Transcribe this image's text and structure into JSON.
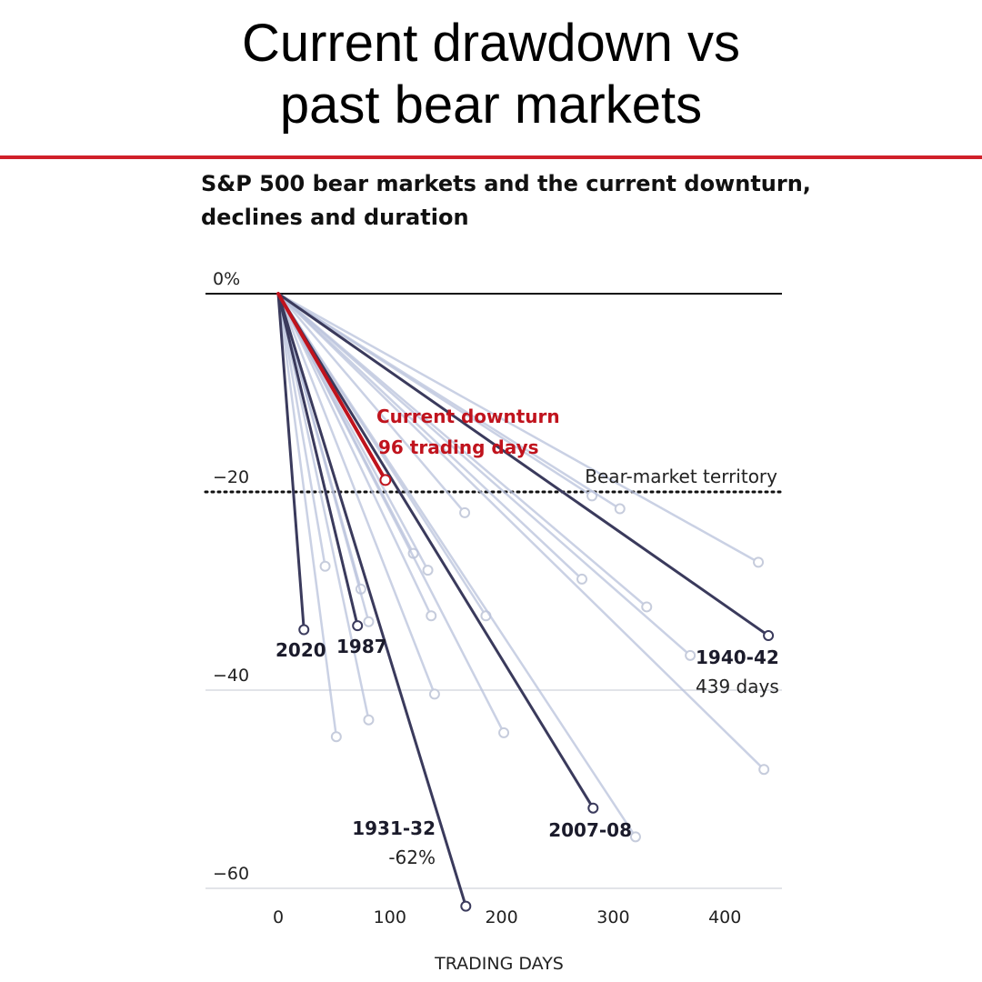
{
  "header": {
    "title_line1": "Current drawdown vs",
    "title_line2": "past bear markets"
  },
  "colors": {
    "rule": "#d0202a",
    "current": "#c0131d",
    "highlight": "#3a3a5c",
    "faded": "#b9c2dc"
  },
  "chart_data": {
    "type": "line",
    "title": "S&P 500 bear markets and the current downturn, declines and duration",
    "xlabel": "TRADING DAYS",
    "ylabel": "",
    "xlim": [
      -65,
      450
    ],
    "ylim": [
      -62,
      0
    ],
    "x_ticks": [
      "0",
      "100",
      "200",
      "300",
      "400"
    ],
    "y_ticks": [
      "0%",
      "−20",
      "−40",
      "−60"
    ],
    "threshold": {
      "y": -20,
      "label": "Bear-market territory"
    },
    "series": [
      {
        "name": "Current downturn",
        "style": "current",
        "start": [
          0,
          0
        ],
        "end": [
          96,
          -18.8
        ]
      },
      {
        "name": "2020",
        "style": "highlight",
        "start": [
          0,
          0
        ],
        "end": [
          23,
          -33.9
        ]
      },
      {
        "name": "1987",
        "style": "highlight",
        "start": [
          0,
          0
        ],
        "end": [
          71,
          -33.5
        ]
      },
      {
        "name": "1931-32",
        "style": "highlight",
        "start": [
          0,
          0
        ],
        "end": [
          168,
          -61.8
        ]
      },
      {
        "name": "2007-08",
        "style": "highlight",
        "start": [
          0,
          0
        ],
        "end": [
          282,
          -51.9
        ]
      },
      {
        "name": "1940-42",
        "style": "highlight",
        "start": [
          0,
          0
        ],
        "end": [
          439,
          -34.5
        ]
      },
      {
        "style": "faded",
        "start": [
          0,
          0
        ],
        "end": [
          42,
          -27.5
        ]
      },
      {
        "style": "faded",
        "start": [
          0,
          0
        ],
        "end": [
          52,
          -44.7
        ]
      },
      {
        "style": "faded",
        "start": [
          0,
          0
        ],
        "end": [
          74,
          -29.8
        ]
      },
      {
        "style": "faded",
        "start": [
          0,
          0
        ],
        "end": [
          81,
          -33.1
        ]
      },
      {
        "style": "faded",
        "start": [
          0,
          0
        ],
        "end": [
          81,
          -43.0
        ]
      },
      {
        "style": "faded",
        "start": [
          0,
          0
        ],
        "end": [
          121,
          -26.2
        ]
      },
      {
        "style": "faded",
        "start": [
          0,
          0
        ],
        "end": [
          134,
          -27.9
        ]
      },
      {
        "style": "faded",
        "start": [
          0,
          0
        ],
        "end": [
          137,
          -32.5
        ]
      },
      {
        "style": "faded",
        "start": [
          0,
          0
        ],
        "end": [
          140,
          -40.4
        ]
      },
      {
        "style": "faded",
        "start": [
          0,
          0
        ],
        "end": [
          167,
          -22.1
        ]
      },
      {
        "style": "faded",
        "start": [
          0,
          0
        ],
        "end": [
          186,
          -32.5
        ]
      },
      {
        "style": "faded",
        "start": [
          0,
          0
        ],
        "end": [
          202,
          -44.3
        ]
      },
      {
        "style": "faded",
        "start": [
          0,
          0
        ],
        "end": [
          272,
          -28.8
        ]
      },
      {
        "style": "faded",
        "start": [
          0,
          0
        ],
        "end": [
          281,
          -20.4
        ]
      },
      {
        "style": "faded",
        "start": [
          0,
          0
        ],
        "end": [
          306,
          -21.7
        ]
      },
      {
        "style": "faded",
        "start": [
          0,
          0
        ],
        "end": [
          320,
          -54.8
        ]
      },
      {
        "style": "faded",
        "start": [
          0,
          0
        ],
        "end": [
          330,
          -31.6
        ]
      },
      {
        "style": "faded",
        "start": [
          0,
          0
        ],
        "end": [
          369,
          -36.5
        ]
      },
      {
        "style": "faded",
        "start": [
          0,
          0
        ],
        "end": [
          430,
          -27.1
        ]
      },
      {
        "style": "faded",
        "start": [
          0,
          0
        ],
        "end": [
          435,
          -48.0
        ]
      }
    ],
    "annotations": {
      "current_line1": "Current downturn",
      "current_line2": "96 trading days",
      "label_1940_days": "439 days",
      "label_1931_pct": "-62%"
    }
  }
}
